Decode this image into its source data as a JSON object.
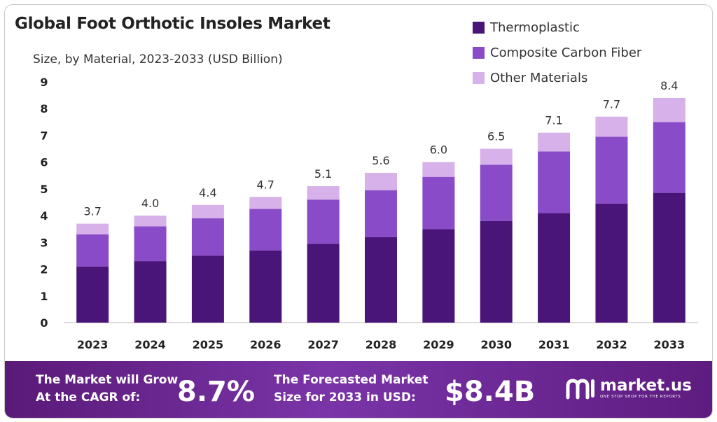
{
  "header": {
    "title": "Global Foot Orthotic Insoles Market",
    "subtitle": "Size, by Material, 2023-2033 (USD Billion)"
  },
  "colors": {
    "thermoplastic": "#4a1578",
    "composite_carbon_fiber": "#8a4bc8",
    "other_materials": "#d6b1ea",
    "footer": "#6a2590"
  },
  "chart_data": {
    "type": "bar",
    "stacked": true,
    "title": "Global Foot Orthotic Insoles Market",
    "subtitle": "Size, by Material, 2023-2033 (USD Billion)",
    "categories": [
      "2023",
      "2024",
      "2025",
      "2026",
      "2027",
      "2028",
      "2029",
      "2030",
      "2031",
      "2032",
      "2033"
    ],
    "series": [
      {
        "name": "Thermoplastic",
        "values": [
          2.1,
          2.3,
          2.5,
          2.7,
          2.95,
          3.2,
          3.5,
          3.8,
          4.1,
          4.45,
          4.85
        ]
      },
      {
        "name": "Composite Carbon Fiber",
        "values": [
          1.2,
          1.3,
          1.4,
          1.55,
          1.65,
          1.75,
          1.95,
          2.1,
          2.3,
          2.5,
          2.65
        ]
      },
      {
        "name": "Other Materials",
        "values": [
          0.4,
          0.4,
          0.5,
          0.45,
          0.5,
          0.65,
          0.55,
          0.6,
          0.7,
          0.75,
          0.9
        ]
      }
    ],
    "totals": [
      "3.7",
      "4.0",
      "4.4",
      "4.7",
      "5.1",
      "5.6",
      "6.0",
      "6.5",
      "7.1",
      "7.7",
      "8.4"
    ],
    "ylim": [
      0,
      9
    ],
    "yticks": [
      "0",
      "1",
      "2",
      "3",
      "4",
      "5",
      "6",
      "7",
      "8",
      "9"
    ],
    "xlabel": "",
    "ylabel": "",
    "legend_position": "top-right",
    "grid": false
  },
  "footer": {
    "cagr_line1": "The Market will Grow",
    "cagr_line2": "At the CAGR of:",
    "cagr_value": "8.7%",
    "forecast_line1": "The Forecasted Market",
    "forecast_line2": "Size for 2033 in USD:",
    "forecast_value": "$8.4B",
    "brand_name": "market.us",
    "brand_tagline": "ONE STOP SHOP FOR THE REPORTS",
    "brand_icon": "market-us-logo-icon"
  }
}
